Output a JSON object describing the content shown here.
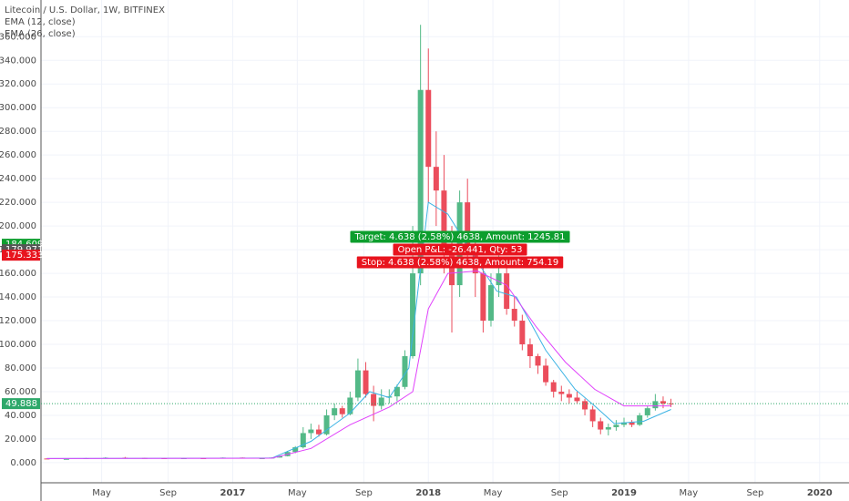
{
  "chart_data": {
    "type": "candlestick",
    "title": "Litecoin / U.S. Dollar, 1W, BITFINEX",
    "up_color": "#53b987",
    "down_color": "#eb4d5c",
    "x": [
      2016.05,
      2016.15,
      2016.25,
      2016.35,
      2016.45,
      2016.55,
      2016.65,
      2016.75,
      2016.85,
      2016.95,
      2017.05,
      2017.15,
      2017.2,
      2017.24,
      2017.28,
      2017.32,
      2017.36,
      2017.4,
      2017.44,
      2017.48,
      2017.52,
      2017.56,
      2017.6,
      2017.64,
      2017.68,
      2017.72,
      2017.76,
      2017.8,
      2017.84,
      2017.88,
      2017.92,
      2017.96,
      2018.0,
      2018.04,
      2018.08,
      2018.12,
      2018.16,
      2018.2,
      2018.24,
      2018.28,
      2018.32,
      2018.36,
      2018.4,
      2018.44,
      2018.48,
      2018.52,
      2018.56,
      2018.6,
      2018.64,
      2018.68,
      2018.72,
      2018.76,
      2018.8,
      2018.84,
      2018.88,
      2018.92,
      2018.96,
      2019.0,
      2019.04,
      2019.08,
      2019.12,
      2019.16,
      2019.2,
      2019.24
    ],
    "open": [
      3.5,
      3.2,
      3.2,
      3.8,
      4.2,
      4,
      3.8,
      3.7,
      3.8,
      3.7,
      4.3,
      3.8,
      3.8,
      4.3,
      5.5,
      9,
      13,
      25,
      28,
      24,
      40,
      46,
      41,
      55,
      78,
      58,
      48,
      55,
      56,
      64,
      90,
      160,
      315,
      250,
      230,
      180,
      150,
      220,
      180,
      160,
      120,
      150,
      160,
      130,
      120,
      100,
      90,
      82,
      68,
      60,
      58,
      55,
      52,
      45,
      35,
      28,
      30,
      32,
      34,
      32,
      40,
      46,
      52,
      50
    ],
    "high": [
      3.6,
      3.4,
      4,
      4.6,
      4.8,
      4.2,
      4,
      4,
      4,
      4.4,
      4.4,
      4,
      4.5,
      6,
      10,
      14,
      30,
      33,
      32,
      45,
      50,
      48,
      60,
      88,
      85,
      65,
      62,
      62,
      66,
      95,
      200,
      370,
      350,
      280,
      260,
      200,
      230,
      240,
      195,
      170,
      160,
      175,
      165,
      140,
      125,
      105,
      92,
      88,
      70,
      65,
      62,
      60,
      54,
      48,
      38,
      33,
      36,
      38,
      36,
      42,
      48,
      58,
      56,
      54
    ],
    "low": [
      3.1,
      3,
      3.1,
      3.6,
      3.9,
      3.7,
      3.6,
      3.5,
      3.6,
      3.6,
      3.7,
      3.7,
      3.7,
      4.2,
      5.3,
      8,
      12,
      20,
      22,
      23,
      36,
      38,
      40,
      52,
      55,
      35,
      45,
      50,
      52,
      62,
      88,
      150,
      220,
      200,
      160,
      110,
      140,
      170,
      140,
      110,
      115,
      140,
      125,
      115,
      95,
      80,
      75,
      65,
      55,
      52,
      50,
      50,
      40,
      30,
      24,
      23,
      27,
      30,
      30,
      31,
      38,
      44,
      46,
      47
    ],
    "close": [
      3.2,
      3.2,
      3.8,
      4.2,
      4,
      3.8,
      3.7,
      3.8,
      3.7,
      4.3,
      3.8,
      3.8,
      4.3,
      5.5,
      9,
      13,
      25,
      28,
      24,
      40,
      46,
      41,
      55,
      78,
      58,
      48,
      55,
      56,
      64,
      90,
      160,
      315,
      250,
      230,
      180,
      150,
      220,
      180,
      160,
      120,
      150,
      160,
      130,
      120,
      100,
      90,
      82,
      68,
      60,
      58,
      55,
      52,
      45,
      35,
      28,
      30,
      32,
      34,
      32,
      40,
      46,
      52,
      50,
      49.888
    ],
    "series": [
      {
        "name": "EMA (12, close)",
        "color": "#3bb3e4",
        "x": [
          2016.05,
          2017.2,
          2017.4,
          2017.6,
          2017.7,
          2017.8,
          2017.9,
          2018.0,
          2018.1,
          2018.25,
          2018.35,
          2018.45,
          2018.6,
          2018.75,
          2018.85,
          2018.95,
          2019.1,
          2019.24
        ],
        "values": [
          3.5,
          3.9,
          18,
          42,
          60,
          55,
          80,
          220,
          210,
          170,
          145,
          140,
          95,
          62,
          48,
          33,
          35,
          45
        ]
      },
      {
        "name": "EMA (26, close)",
        "color": "#e040fb",
        "x": [
          2016.05,
          2017.2,
          2017.4,
          2017.6,
          2017.8,
          2017.92,
          2018.0,
          2018.1,
          2018.25,
          2018.4,
          2018.55,
          2018.7,
          2018.85,
          2019.0,
          2019.24
        ],
        "values": [
          3.5,
          3.8,
          12,
          32,
          47,
          60,
          130,
          160,
          162,
          150,
          115,
          85,
          62,
          48,
          48
        ]
      }
    ],
    "xlim": [
      2016.02,
      2020.15
    ],
    "ylim": [
      -17,
      391
    ],
    "xticks": [
      {
        "value": 2016.33,
        "label": "May"
      },
      {
        "value": 2016.67,
        "label": "Sep"
      },
      {
        "value": 2017,
        "label": "2017"
      },
      {
        "value": 2017.33,
        "label": "May"
      },
      {
        "value": 2017.67,
        "label": "Sep"
      },
      {
        "value": 2018,
        "label": "2018"
      },
      {
        "value": 2018.33,
        "label": "May"
      },
      {
        "value": 2018.67,
        "label": "Sep"
      },
      {
        "value": 2019,
        "label": "2019"
      },
      {
        "value": 2019.33,
        "label": "May"
      },
      {
        "value": 2019.67,
        "label": "Sep"
      },
      {
        "value": 2020,
        "label": "2020"
      }
    ],
    "yticks": [
      {
        "value": 0,
        "label": "0.000"
      },
      {
        "value": 20,
        "label": "20.000"
      },
      {
        "value": 40,
        "label": "40.000"
      },
      {
        "value": 60,
        "label": "60.000"
      },
      {
        "value": 80,
        "label": "80.000"
      },
      {
        "value": 100,
        "label": "100.000"
      },
      {
        "value": 120,
        "label": "120.000"
      },
      {
        "value": 140,
        "label": "140.000"
      },
      {
        "value": 160,
        "label": "160.000"
      },
      {
        "value": 180,
        "label": "180.000"
      },
      {
        "value": 200,
        "label": "200.000"
      },
      {
        "value": 220,
        "label": "220.000"
      },
      {
        "value": 240,
        "label": "240.000"
      },
      {
        "value": 260,
        "label": "260.000"
      },
      {
        "value": 280,
        "label": "280.000"
      },
      {
        "value": 300,
        "label": "300.000"
      },
      {
        "value": 320,
        "label": "320.000"
      },
      {
        "value": 340,
        "label": "340.000"
      },
      {
        "value": 360,
        "label": "360.000"
      }
    ],
    "grid": true,
    "price_labels": [
      {
        "value": 184.609,
        "color": "#0d9e2e"
      },
      {
        "value": 179.971,
        "color": "#555555"
      },
      {
        "value": 175.333,
        "color": "#e8141e"
      },
      {
        "value": 49.888,
        "color": "#2ea86a",
        "line": true
      }
    ],
    "order_labels": [
      {
        "text": "Target: 4.638 (2.58%) 4638, Amount: 1245.81",
        "color": "#0d9e2e"
      },
      {
        "text": "Open P&L: -26.441, Qty: 53",
        "color": "#e8141e"
      },
      {
        "text": "Stop: 4.638 (2.58%) 4638, Amount: 754.19",
        "color": "#e8141e"
      }
    ]
  }
}
